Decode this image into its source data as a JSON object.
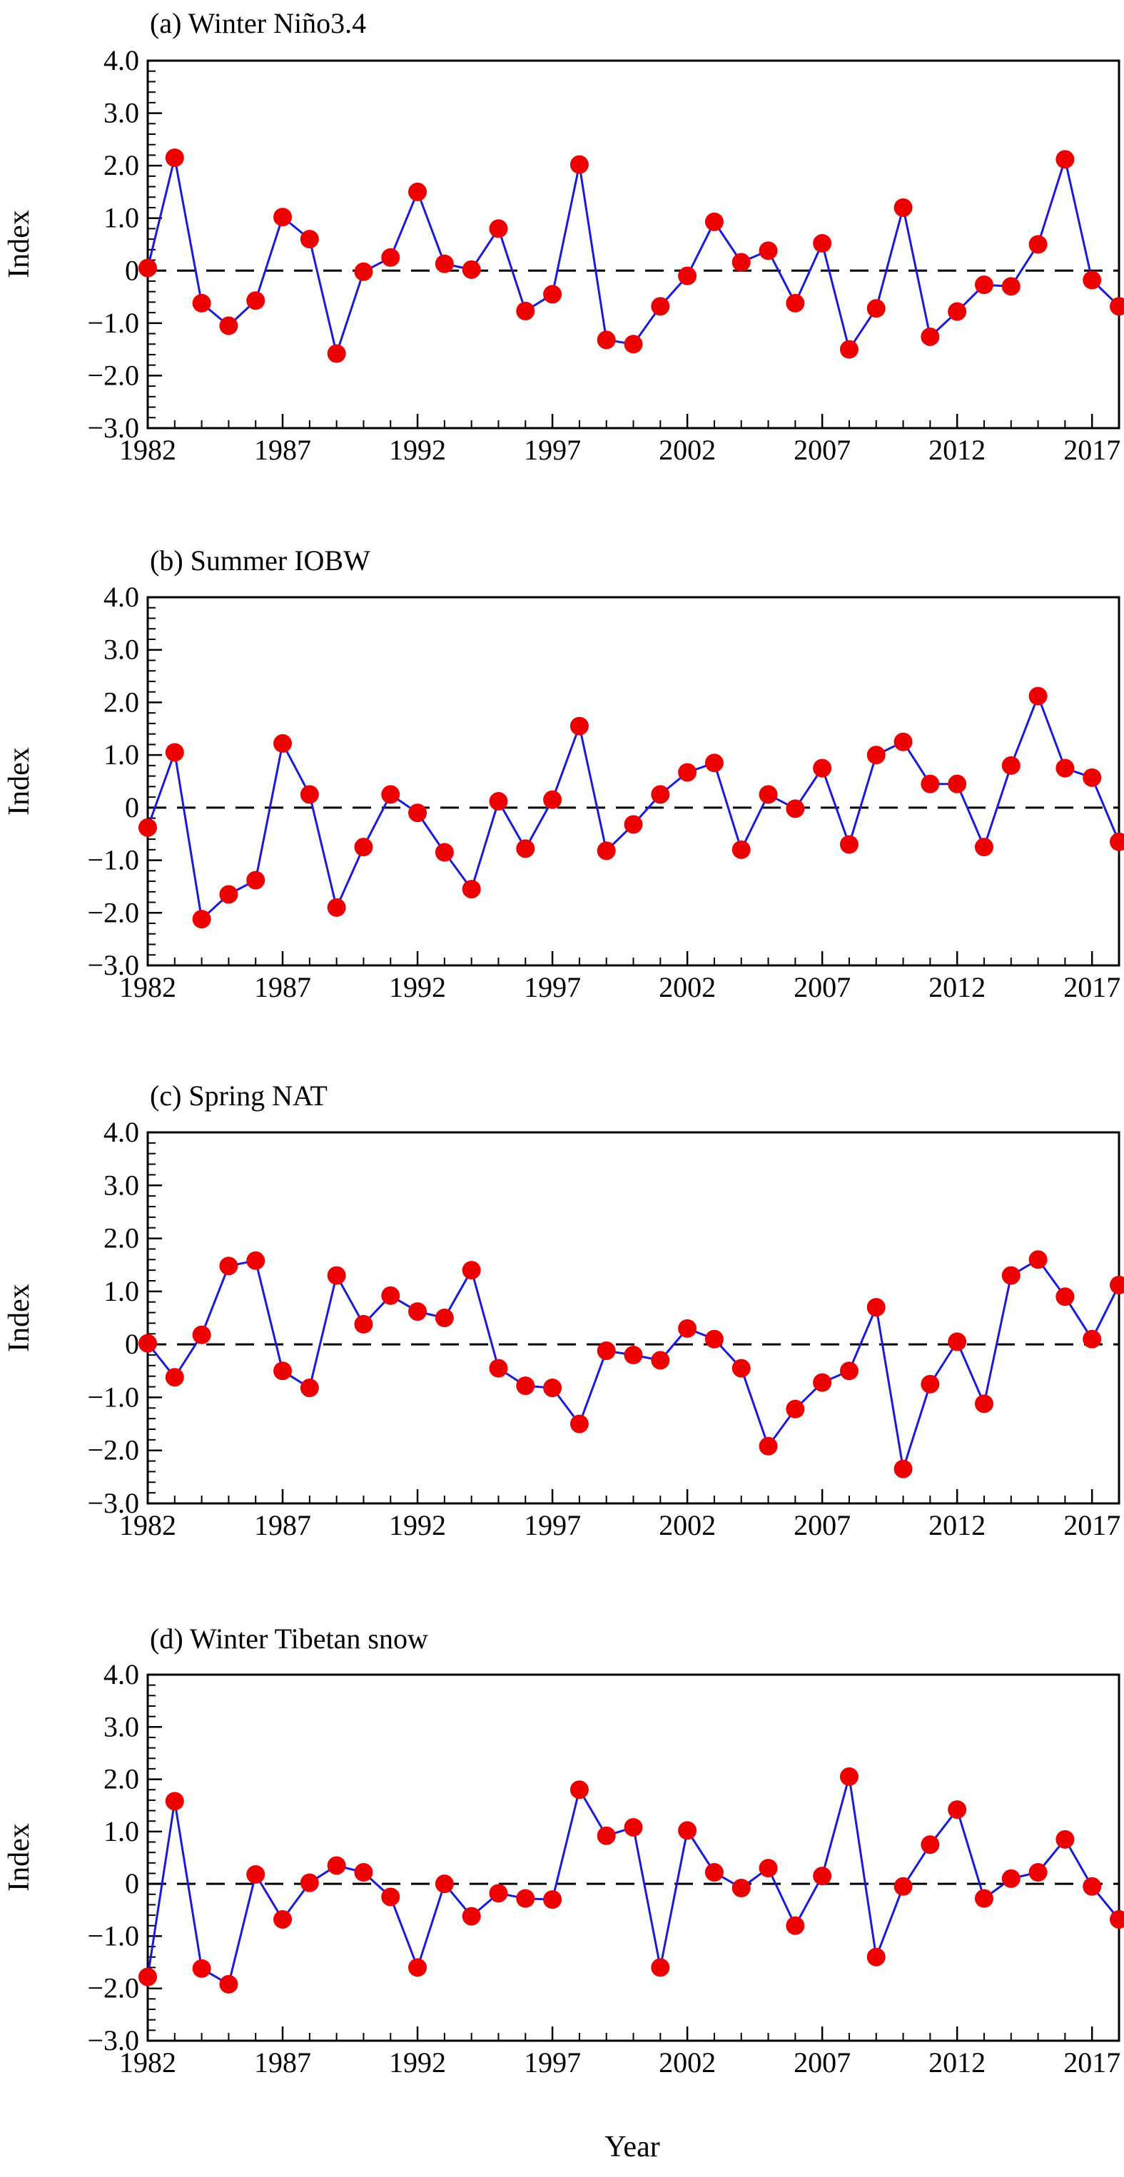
{
  "colors": {
    "line": "#1a1adb",
    "marker": "#ee0000",
    "axis": "#000000",
    "background": "#ffffff"
  },
  "xaxis": {
    "label": "Year",
    "range": [
      1982,
      2018
    ],
    "ticks": [
      "1982",
      "1987",
      "1992",
      "1997",
      "2002",
      "2007",
      "2012",
      "2017"
    ]
  },
  "yaxis": {
    "label": "Index",
    "range": [
      -3.0,
      4.0
    ],
    "ticks": [
      "4.0",
      "3.0",
      "2.0",
      "1.0",
      "0",
      "−1.0",
      "−2.0",
      "−3.0"
    ]
  },
  "chart_data": [
    {
      "type": "line",
      "title": "(a) Winter Niño3.4",
      "xlabel": "",
      "ylabel": "Index",
      "ylim": [
        -3.0,
        4.0
      ],
      "x": [
        1982,
        1983,
        1984,
        1985,
        1986,
        1987,
        1988,
        1989,
        1990,
        1991,
        1992,
        1993,
        1994,
        1995,
        1996,
        1997,
        1998,
        1999,
        2000,
        2001,
        2002,
        2003,
        2004,
        2005,
        2006,
        2007,
        2008,
        2009,
        2010,
        2011,
        2012,
        2013,
        2014,
        2015,
        2016,
        2017,
        2018
      ],
      "values": [
        0.05,
        2.15,
        -0.62,
        -1.05,
        -0.57,
        1.02,
        0.6,
        -1.58,
        -0.02,
        0.25,
        1.5,
        0.13,
        0.02,
        0.8,
        -0.77,
        -0.45,
        2.02,
        -1.32,
        -1.4,
        -0.68,
        -0.1,
        0.93,
        0.16,
        0.38,
        -0.62,
        0.52,
        -1.5,
        -0.72,
        1.2,
        -1.26,
        -0.78,
        -0.27,
        -0.3,
        0.5,
        2.12,
        -0.18,
        -0.68
      ]
    },
    {
      "type": "line",
      "title": "(b) Summer IOBW",
      "xlabel": "",
      "ylabel": "Index",
      "ylim": [
        -3.0,
        4.0
      ],
      "x": [
        1982,
        1983,
        1984,
        1985,
        1986,
        1987,
        1988,
        1989,
        1990,
        1991,
        1992,
        1993,
        1994,
        1995,
        1996,
        1997,
        1998,
        1999,
        2000,
        2001,
        2002,
        2003,
        2004,
        2005,
        2006,
        2007,
        2008,
        2009,
        2010,
        2011,
        2012,
        2013,
        2014,
        2015,
        2016,
        2017,
        2018
      ],
      "values": [
        -0.38,
        1.05,
        -2.12,
        -1.65,
        -1.38,
        1.22,
        0.25,
        -1.9,
        -0.75,
        0.25,
        -0.1,
        -0.85,
        -1.55,
        0.12,
        -0.78,
        0.15,
        1.55,
        -0.82,
        -0.32,
        0.25,
        0.67,
        0.85,
        -0.8,
        0.25,
        -0.02,
        0.75,
        -0.7,
        1.0,
        1.25,
        0.45,
        0.45,
        -0.75,
        0.8,
        2.12,
        0.75,
        0.57,
        -0.65
      ]
    },
    {
      "type": "line",
      "title": "(c) Spring NAT",
      "xlabel": "",
      "ylabel": "Index",
      "ylim": [
        -3.0,
        4.0
      ],
      "x": [
        1982,
        1983,
        1984,
        1985,
        1986,
        1987,
        1988,
        1989,
        1990,
        1991,
        1992,
        1993,
        1994,
        1995,
        1996,
        1997,
        1998,
        1999,
        2000,
        2001,
        2002,
        2003,
        2004,
        2005,
        2006,
        2007,
        2008,
        2009,
        2010,
        2011,
        2012,
        2013,
        2014,
        2015,
        2016,
        2017,
        2018
      ],
      "values": [
        0.02,
        -0.62,
        0.18,
        1.48,
        1.58,
        -0.5,
        -0.82,
        1.3,
        0.38,
        0.92,
        0.62,
        0.5,
        1.4,
        -0.45,
        -0.78,
        -0.82,
        -1.5,
        -0.12,
        -0.2,
        -0.3,
        0.3,
        0.1,
        -0.45,
        -1.92,
        -1.22,
        -0.72,
        -0.5,
        0.7,
        -2.35,
        -0.75,
        0.05,
        -1.12,
        1.3,
        1.6,
        0.9,
        0.1,
        1.12
      ]
    },
    {
      "type": "line",
      "title": "(d) Winter Tibetan snow",
      "xlabel": "Year",
      "ylabel": "Index",
      "ylim": [
        -3.0,
        4.0
      ],
      "x": [
        1982,
        1983,
        1984,
        1985,
        1986,
        1987,
        1988,
        1989,
        1990,
        1991,
        1992,
        1993,
        1994,
        1995,
        1996,
        1997,
        1998,
        1999,
        2000,
        2001,
        2002,
        2003,
        2004,
        2005,
        2006,
        2007,
        2008,
        2009,
        2010,
        2011,
        2012,
        2013,
        2014,
        2015,
        2016,
        2017,
        2018
      ],
      "values": [
        -1.78,
        1.58,
        -1.62,
        -1.92,
        0.18,
        -0.68,
        0.02,
        0.35,
        0.22,
        -0.25,
        -1.6,
        0.0,
        -0.62,
        -0.18,
        -0.28,
        -0.3,
        1.8,
        0.92,
        1.08,
        -1.6,
        1.02,
        0.22,
        -0.08,
        0.3,
        -0.8,
        0.15,
        2.05,
        -1.4,
        -0.05,
        0.75,
        1.42,
        -0.28,
        0.1,
        0.22,
        0.85,
        -0.05,
        -0.68
      ]
    }
  ]
}
